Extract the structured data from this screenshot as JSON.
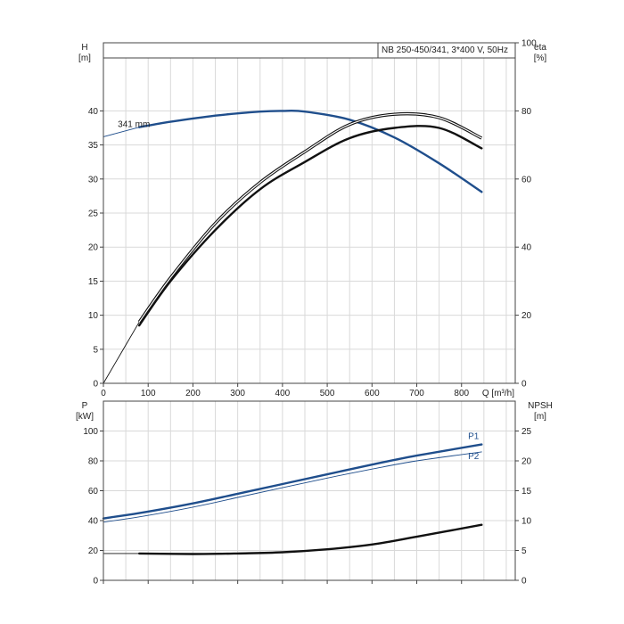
{
  "colors": {
    "blue": "#1f4e8c",
    "black": "#111111",
    "grid": "#d9d9d9"
  },
  "chart_data": [
    {
      "type": "line",
      "panel": "head-efficiency",
      "title": "NB 250-450/341, 3*400 V, 50Hz",
      "xlabel": "Q [m³/h]",
      "x_ticks": [
        0,
        100,
        200,
        300,
        400,
        500,
        600,
        700,
        800
      ],
      "xlim": [
        0,
        920
      ],
      "ylabel_left": "H",
      "ylabel_left_unit": "[m]",
      "y_ticks_left": [
        0,
        5,
        10,
        15,
        20,
        25,
        30,
        35,
        40
      ],
      "ylim_left": [
        0,
        50
      ],
      "ylabel_right": "eta",
      "ylabel_right_unit": "[%]",
      "y_ticks_right": [
        0,
        20,
        40,
        60,
        80,
        100
      ],
      "ylim_right": [
        0,
        100
      ],
      "grid": true,
      "annotations": [
        {
          "text": "341 mm",
          "x": 80,
          "y": 37.6
        }
      ],
      "series": [
        {
          "axis": "left",
          "style": "thin",
          "color": "#1f4e8c",
          "x": [
            0,
            40,
            80
          ],
          "y": [
            36.2,
            36.9,
            37.6
          ]
        },
        {
          "axis": "left",
          "style": "thick",
          "color": "#1f4e8c",
          "x": [
            80,
            150,
            250,
            350,
            400,
            450,
            550,
            650,
            750,
            845
          ],
          "y": [
            37.6,
            38.4,
            39.3,
            39.9,
            40.0,
            39.9,
            38.7,
            36.1,
            32.3,
            28.1
          ]
        },
        {
          "axis": "right",
          "style": "thin",
          "color": "#111111",
          "x": [
            0,
            40,
            80
          ],
          "y": [
            0,
            9,
            18
          ]
        },
        {
          "axis": "right",
          "style": "double",
          "color": "#111111",
          "x": [
            80,
            150,
            250,
            350,
            450,
            550,
            650,
            750,
            845
          ],
          "y": [
            18,
            31,
            47,
            59,
            68,
            76,
            79,
            78,
            72
          ]
        },
        {
          "axis": "right",
          "style": "thick",
          "color": "#111111",
          "x": [
            80,
            150,
            250,
            350,
            450,
            550,
            650,
            750,
            845
          ],
          "y": [
            17,
            30,
            45,
            57,
            65,
            72,
            75,
            75,
            69
          ]
        }
      ]
    },
    {
      "type": "line",
      "panel": "power-npsh",
      "xlim": [
        0,
        920
      ],
      "ylabel_left": "P",
      "ylabel_left_unit": "[kW]",
      "y_ticks_left": [
        0,
        20,
        40,
        60,
        80,
        100
      ],
      "ylim_left": [
        0,
        120
      ],
      "ylabel_right": "NPSH",
      "ylabel_right_unit": "[m]",
      "y_ticks_right": [
        0,
        5,
        10,
        15,
        20,
        25
      ],
      "ylim_right": [
        0,
        30
      ],
      "grid": true,
      "series": [
        {
          "name": "P1",
          "axis": "left",
          "style": "thick",
          "color": "#1f4e8c",
          "x": [
            0,
            80,
            200,
            300,
            400,
            500,
            600,
            700,
            845
          ],
          "y": [
            41.5,
            45.0,
            51.5,
            58.0,
            64.5,
            71.0,
            77.5,
            83.5,
            91.0
          ]
        },
        {
          "name": "P2",
          "axis": "left",
          "style": "thin",
          "color": "#1f4e8c",
          "x": [
            0,
            80,
            200,
            300,
            400,
            500,
            600,
            700,
            845
          ],
          "y": [
            39.0,
            42.5,
            49.0,
            55.5,
            62.0,
            68.5,
            74.5,
            80.0,
            86.0
          ]
        },
        {
          "axis": "right",
          "style": "thin",
          "color": "#111111",
          "x": [
            0,
            80
          ],
          "y": [
            4.5,
            4.5
          ]
        },
        {
          "axis": "right",
          "style": "thick",
          "color": "#111111",
          "x": [
            80,
            200,
            300,
            400,
            500,
            600,
            700,
            845
          ],
          "y": [
            4.5,
            4.4,
            4.5,
            4.7,
            5.2,
            6.0,
            7.3,
            9.3
          ]
        }
      ]
    }
  ]
}
